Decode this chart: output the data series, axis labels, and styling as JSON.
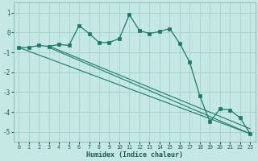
{
  "background_color": "#c5e8e5",
  "grid_color": "#a8d4d0",
  "line_color": "#1a7a6a",
  "xlabel": "Humidex (Indice chaleur)",
  "ylim": [
    -5.5,
    1.5
  ],
  "xlim": [
    -0.5,
    23.5
  ],
  "yticks": [
    1,
    0,
    -1,
    -2,
    -3,
    -4,
    -5
  ],
  "xticks": [
    0,
    1,
    2,
    3,
    4,
    5,
    6,
    7,
    8,
    9,
    10,
    11,
    12,
    13,
    14,
    15,
    16,
    17,
    18,
    19,
    20,
    21,
    22,
    23
  ],
  "series": [
    {
      "x": [
        0,
        1,
        2,
        3,
        4,
        5,
        6,
        7,
        8,
        9,
        10,
        11,
        12,
        13,
        14,
        15,
        16,
        17,
        18,
        19,
        20,
        21,
        22,
        23
      ],
      "y": [
        -0.75,
        -0.75,
        -0.65,
        -0.7,
        -0.6,
        -0.65,
        0.35,
        -0.05,
        -0.5,
        -0.5,
        -0.3,
        0.9,
        0.1,
        -0.05,
        0.05,
        0.2,
        -0.55,
        -1.5,
        -3.2,
        -4.5,
        -3.85,
        -3.9,
        -4.3,
        -5.1
      ],
      "has_markers": true
    },
    {
      "x": [
        0,
        3,
        23
      ],
      "y": [
        -0.75,
        -0.75,
        -5.1
      ],
      "has_markers": false
    },
    {
      "x": [
        0,
        3,
        23
      ],
      "y": [
        -0.75,
        -0.75,
        -5.1
      ],
      "has_markers": false
    },
    {
      "x": [
        0,
        3,
        23
      ],
      "y": [
        -0.75,
        -0.75,
        -5.1
      ],
      "has_markers": false
    }
  ],
  "straight_lines": [
    {
      "x": [
        0,
        23
      ],
      "y": [
        -0.75,
        -5.1
      ]
    },
    {
      "x": [
        3,
        23
      ],
      "y": [
        -0.75,
        -5.1
      ]
    },
    {
      "x": [
        3,
        23
      ],
      "y": [
        -0.7,
        -4.9
      ]
    }
  ]
}
